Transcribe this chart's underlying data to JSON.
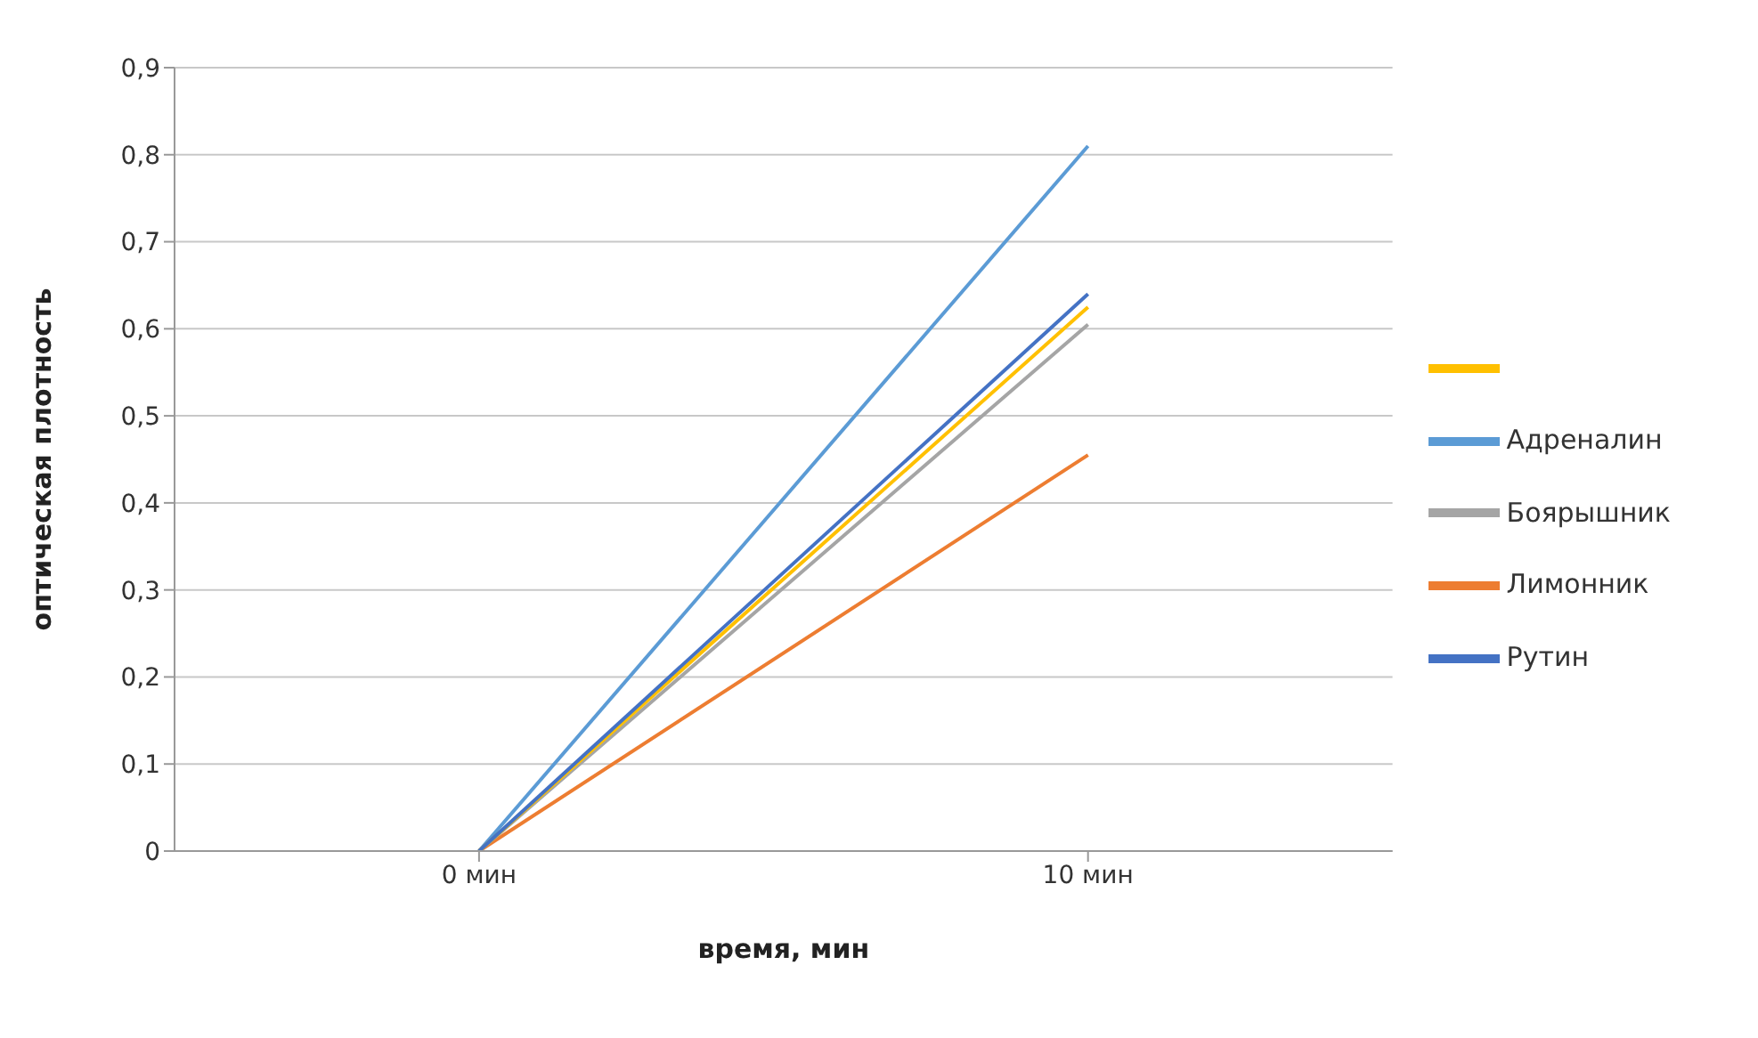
{
  "chart_data": {
    "type": "line",
    "xlabel": "время, мин",
    "ylabel": "оптическая плотность",
    "categories": [
      "0 мин",
      "10 мин"
    ],
    "series": [
      {
        "name": "Адреналин",
        "color": "#5b9bd5",
        "values": [
          0,
          0.81
        ]
      },
      {
        "name": "Лимонник",
        "color": "#ed7d31",
        "values": [
          0,
          0.455
        ]
      },
      {
        "name": "Боярышник",
        "color": "#a5a5a5",
        "values": [
          0,
          0.605
        ]
      },
      {
        "color": "#ffc000",
        "values": [
          0,
          0.625
        ]
      },
      {
        "name": "Рутин",
        "color": "#4472c4",
        "values": [
          0,
          0.64
        ]
      }
    ],
    "ylim": [
      0,
      0.9
    ],
    "yticks": [
      0,
      {
        "value": 0.1,
        "label": "0,1"
      },
      {
        "value": 0.2,
        "label": "0,2"
      },
      {
        "value": 0.3,
        "label": "0,3"
      },
      {
        "value": 0.4,
        "label": "0,4"
      },
      {
        "value": 0.5,
        "label": "0,5"
      },
      {
        "value": 0.6,
        "label": "0,6"
      },
      {
        "value": 0.7,
        "label": "0,7"
      },
      {
        "value": 0.8,
        "label": "0,8"
      },
      {
        "value": 0.9,
        "label": "0,9"
      }
    ],
    "grid": "y",
    "legend": "right",
    "marker": "none",
    "line_style": "solid"
  }
}
